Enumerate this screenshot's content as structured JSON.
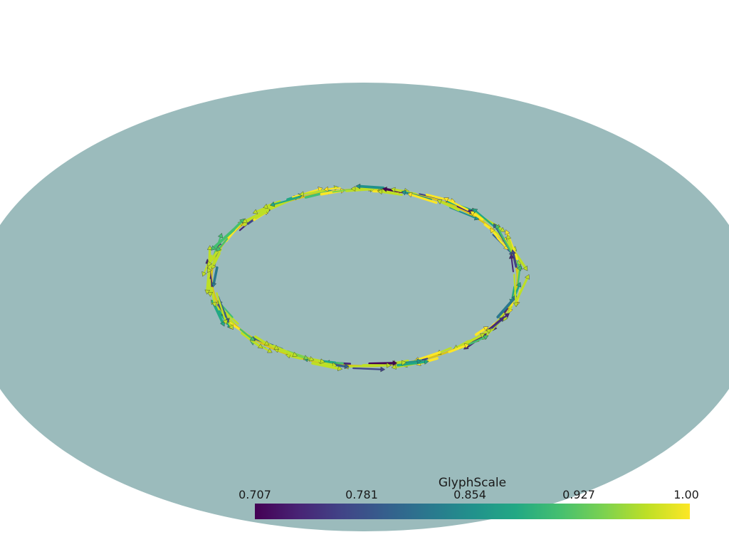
{
  "scalar_bar": {
    "title": "GlyphScale",
    "ticks": [
      "0.707",
      "0.781",
      "0.854",
      "0.927",
      "1.00"
    ],
    "colormap": "viridis"
  },
  "colors": {
    "background": "#ffffff",
    "disk": "#9bbbbc",
    "colormap_stops": [
      "#440154",
      "#482475",
      "#414487",
      "#355f8d",
      "#2a788e",
      "#21918c",
      "#22a884",
      "#44bf70",
      "#7ad151",
      "#bddf26",
      "#fde725"
    ]
  }
}
